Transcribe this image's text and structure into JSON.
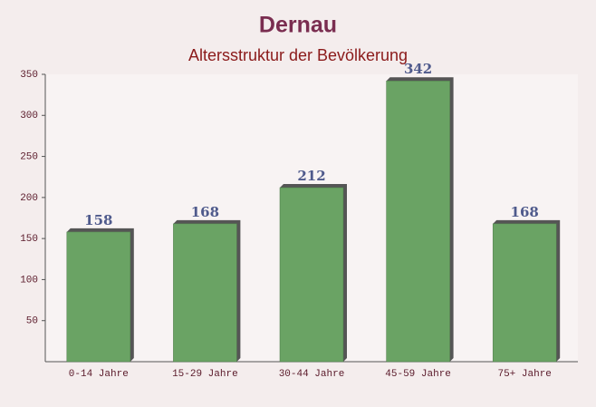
{
  "chart_data": {
    "type": "bar",
    "title": "Dernau",
    "subtitle": "Altersstruktur der Bevölkerung",
    "categories": [
      "0-14 Jahre",
      "15-29 Jahre",
      "30-44 Jahre",
      "45-59 Jahre",
      "75+ Jahre"
    ],
    "values": [
      158,
      168,
      212,
      342,
      168
    ],
    "color": "#6aa364",
    "ylim": [
      0,
      350
    ],
    "yticks": [
      50,
      100,
      150,
      200,
      250,
      300,
      350
    ],
    "grid": false
  }
}
